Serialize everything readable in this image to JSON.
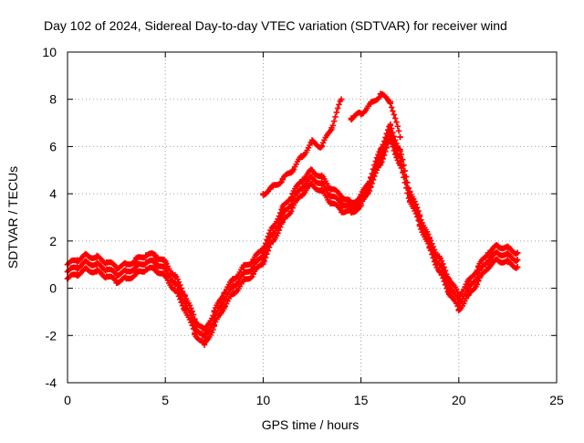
{
  "chart_data": {
    "type": "scatter",
    "title": "Day 102 of 2024, Sidereal Day-to-day VTEC variation (SDTVAR) for receiver wind",
    "xlabel": "GPS time / hours",
    "ylabel": "SDTVAR / TECUs",
    "xlim": [
      0,
      25
    ],
    "ylim": [
      -4,
      10
    ],
    "x_ticks": [
      0,
      5,
      10,
      15,
      20,
      25
    ],
    "y_ticks": [
      -4,
      -2,
      0,
      2,
      4,
      6,
      8,
      10
    ],
    "grid": true,
    "marker": "+",
    "color": "#ff0000",
    "series": [
      {
        "name": "track-1",
        "x": [
          0,
          0.5,
          1,
          1.5,
          2,
          2.5,
          3,
          3.5,
          4,
          4.5,
          5,
          5.5,
          6,
          6.5,
          7,
          7.5,
          8,
          8.5,
          9,
          9.5,
          10,
          10.5,
          11,
          11.5,
          12,
          12.5,
          13,
          13.5,
          14,
          14.5,
          15,
          15.5,
          16,
          16.5,
          17,
          17.5,
          18,
          18.5,
          19,
          19.5,
          20,
          20.5,
          21,
          21.5,
          22,
          22.5,
          23
        ],
        "y": [
          1.0,
          1.2,
          1.4,
          1.3,
          1.1,
          0.9,
          1.0,
          1.2,
          1.4,
          1.4,
          1.1,
          0.5,
          -0.3,
          -1.3,
          -1.8,
          -1.0,
          -0.2,
          0.4,
          0.9,
          1.2,
          1.7,
          2.6,
          3.4,
          4.0,
          4.6,
          5.0,
          4.7,
          4.2,
          3.9,
          3.6,
          3.9,
          4.7,
          5.9,
          6.9,
          5.8,
          4.1,
          3.1,
          2.1,
          1.3,
          0.4,
          -0.3,
          0.3,
          0.9,
          1.5,
          1.8,
          1.7,
          1.5
        ]
      },
      {
        "name": "track-2",
        "x": [
          0,
          0.5,
          1,
          1.5,
          2,
          2.5,
          3,
          3.5,
          4,
          4.5,
          5,
          5.5,
          6,
          6.5,
          7,
          7.5,
          8,
          8.5,
          9,
          9.5,
          10,
          10.5,
          11,
          11.5,
          12,
          12.5,
          13,
          13.5,
          14,
          14.5,
          15,
          15.5,
          16,
          16.5,
          17,
          17.5,
          18,
          18.5,
          19,
          19.5,
          20,
          20.5,
          21,
          21.5,
          22,
          22.5,
          23
        ],
        "y": [
          0.7,
          0.9,
          1.1,
          1.0,
          0.8,
          0.6,
          0.7,
          0.9,
          1.1,
          1.1,
          0.8,
          0.2,
          -0.6,
          -1.6,
          -2.1,
          -1.3,
          -0.5,
          0.1,
          0.6,
          0.9,
          1.4,
          2.3,
          3.1,
          3.7,
          4.3,
          4.7,
          4.4,
          3.9,
          3.6,
          3.4,
          3.7,
          4.5,
          5.6,
          6.6,
          5.5,
          3.9,
          2.9,
          1.9,
          1.0,
          0.1,
          -0.6,
          0.0,
          0.6,
          1.2,
          1.5,
          1.4,
          1.2
        ]
      },
      {
        "name": "track-3",
        "x": [
          0,
          0.5,
          1,
          1.5,
          2,
          2.5,
          3,
          3.5,
          4,
          4.5,
          5,
          5.5,
          6,
          6.5,
          7,
          7.5,
          8,
          8.5,
          9,
          9.5,
          10,
          10.5,
          11,
          11.5,
          12,
          12.5,
          13,
          13.5,
          14,
          14.5,
          15,
          15.5,
          16,
          16.5,
          17,
          17.5,
          18,
          18.5,
          19,
          19.5,
          20,
          20.5,
          21,
          21.5,
          22,
          22.5,
          23
        ],
        "y": [
          0.4,
          0.6,
          0.8,
          0.7,
          0.5,
          0.3,
          0.4,
          0.6,
          0.8,
          0.8,
          0.5,
          -0.1,
          -0.9,
          -1.9,
          -2.4,
          -1.6,
          -0.8,
          -0.2,
          0.3,
          0.6,
          1.1,
          2.0,
          2.8,
          3.4,
          4.0,
          4.4,
          4.1,
          3.6,
          3.3,
          3.2,
          3.5,
          4.3,
          5.3,
          6.3,
          5.2,
          3.7,
          2.7,
          1.7,
          0.7,
          -0.2,
          -0.9,
          -0.3,
          0.3,
          0.9,
          1.2,
          1.1,
          0.9
        ]
      },
      {
        "name": "track-4",
        "x": [
          10,
          10.5,
          11,
          11.5,
          12,
          12.5,
          13,
          13.5,
          14
        ],
        "y": [
          4.0,
          4.3,
          4.6,
          5.0,
          5.6,
          6.2,
          6.0,
          6.8,
          8.0
        ]
      },
      {
        "name": "track-5",
        "x": [
          14.5,
          15,
          15.5,
          16,
          16.5,
          17
        ],
        "y": [
          7.2,
          7.4,
          7.8,
          8.2,
          7.9,
          6.4
        ]
      }
    ]
  }
}
